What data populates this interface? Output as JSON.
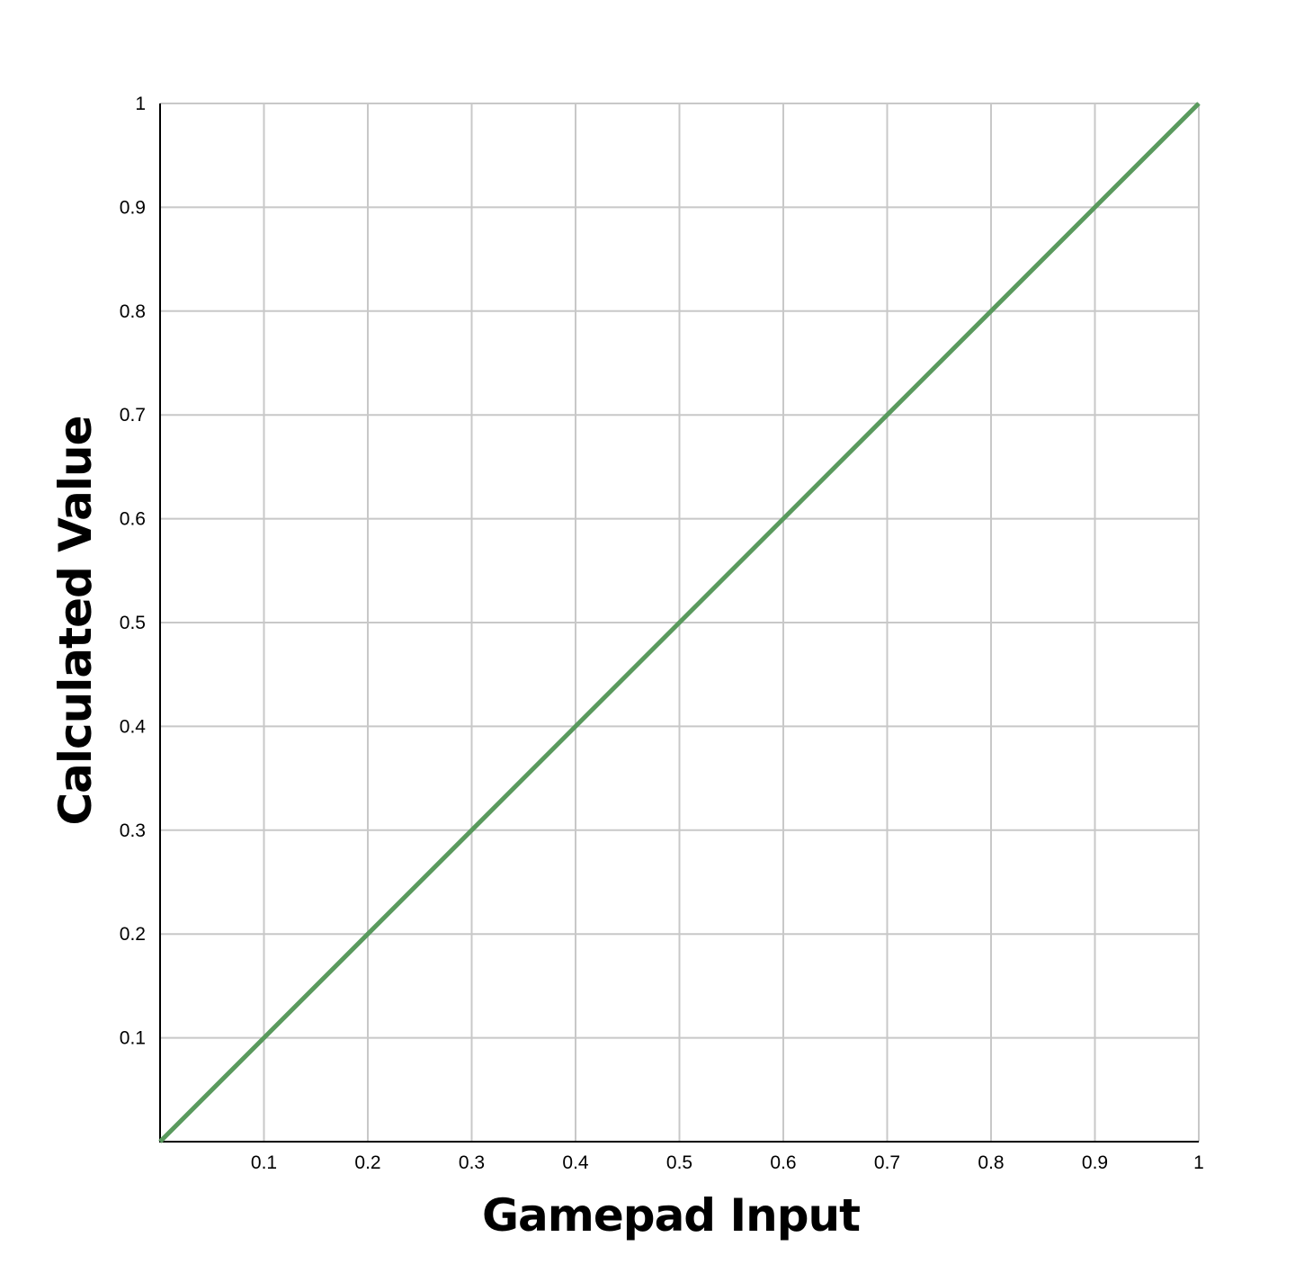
{
  "chart_data": {
    "type": "line",
    "title": "",
    "xlabel": "Gamepad Input",
    "ylabel": "Calculated Value",
    "xlim": [
      0,
      1
    ],
    "ylim": [
      0,
      1
    ],
    "grid": true,
    "x_ticks": [
      "0.1",
      "0.2",
      "0.3",
      "0.4",
      "0.5",
      "0.6",
      "0.7",
      "0.8",
      "0.9",
      "1"
    ],
    "y_ticks": [
      "0.1",
      "0.2",
      "0.3",
      "0.4",
      "0.5",
      "0.6",
      "0.7",
      "0.8",
      "0.9",
      "1"
    ],
    "series": [
      {
        "color": "#5a9a5e",
        "x": [
          0,
          0.1,
          0.2,
          0.3,
          0.4,
          0.5,
          0.6,
          0.7,
          0.8,
          0.9,
          1
        ],
        "y": [
          0,
          0.1,
          0.2,
          0.3,
          0.4,
          0.5,
          0.6,
          0.7,
          0.8,
          0.9,
          1
        ]
      }
    ],
    "colors": {
      "grid": "#c8c8c8",
      "axis": "#000000"
    }
  }
}
